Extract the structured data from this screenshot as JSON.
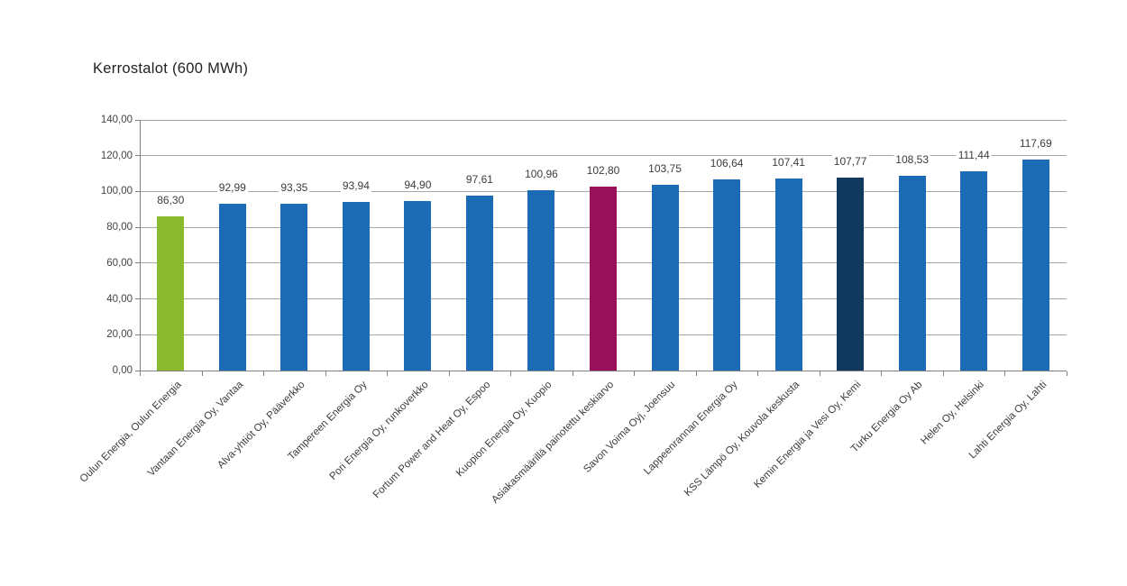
{
  "title": "Kerrostalot (600 MWh)",
  "chart_data": {
    "type": "bar",
    "title": "Kerrostalot (600 MWh)",
    "categories": [
      "Oulun Energia, Oulun Energia",
      "Vantaan Energia Oy, Vantaa",
      "Alva-yhtiöt Oy, Pääverkko",
      "Tampereen Energia Oy",
      "Pori Energia Oy, runkoverkko",
      "Fortum Power and Heat Oy, Espoo",
      "Kuopion Energia Oy, Kuopio",
      "Asiakasmäärillä painotettu keskiarvo",
      "Savon Voima Oyj, Joensuu",
      "Lappeenrannan Energia Oy",
      "KSS Lämpö Oy, Kouvola keskusta",
      "Kemin Energia ja Vesi Oy, Kemi",
      "Turku Energia Oy Ab",
      "Helen Oy, Helsinki",
      "Lahti Energia Oy, Lahti"
    ],
    "values": [
      86.3,
      92.99,
      93.35,
      93.94,
      94.9,
      97.61,
      100.96,
      102.8,
      103.75,
      106.64,
      107.41,
      107.77,
      108.53,
      111.44,
      117.69
    ],
    "value_labels": [
      "86,30",
      "92,99",
      "93,35",
      "93,94",
      "94,90",
      "97,61",
      "100,96",
      "102,80",
      "103,75",
      "106,64",
      "107,41",
      "107,77",
      "108,53",
      "111,44",
      "117,69"
    ],
    "bar_colors": [
      "#8cba2e",
      "#1b6cb4",
      "#1b6cb4",
      "#1b6cb4",
      "#1b6cb4",
      "#1b6cb4",
      "#1b6cb4",
      "#99115a",
      "#1b6cb4",
      "#1b6cb4",
      "#1b6cb4",
      "#12395e",
      "#1b6cb4",
      "#1b6cb4",
      "#1b6cb4"
    ],
    "ylim": [
      0,
      140
    ],
    "ytick_step": 20,
    "ytick_labels": [
      "0,00",
      "20,00",
      "40,00",
      "60,00",
      "80,00",
      "100,00",
      "120,00",
      "140,00"
    ],
    "grid": true,
    "legend": "none",
    "xlabel": "",
    "ylabel": "",
    "colors": {
      "default_bar": "#1b6cb4",
      "first_bar": "#8cba2e",
      "average_bar": "#99115a",
      "kemi_bar": "#12395e",
      "gridline": "#a6a6a6",
      "axis": "#808080",
      "text": "#3c3c3c"
    }
  }
}
